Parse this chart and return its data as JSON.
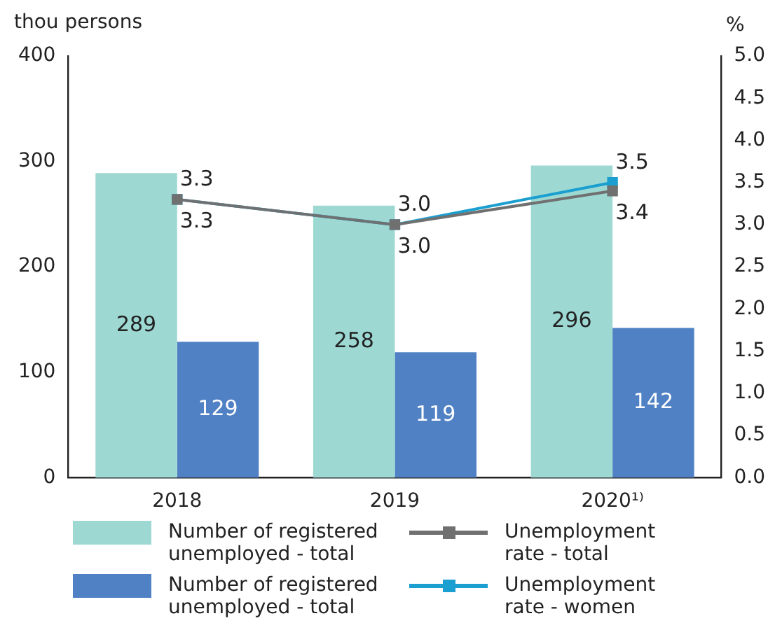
{
  "chart_data": {
    "type": "bar",
    "ylabel": "thou persons",
    "y2label": "%",
    "categories": [
      "2018",
      "2019",
      "2020¹⁾"
    ],
    "series": [
      {
        "name": "Number of registered unemployed - total",
        "color": "#9dd8d3",
        "values": [
          289,
          258,
          296
        ],
        "value_labels": [
          "289",
          "258",
          "296"
        ]
      },
      {
        "name": "Number of registered unemployed - total",
        "color": "#4f81c4",
        "values": [
          129,
          119,
          142
        ],
        "value_labels": [
          "129",
          "119",
          "142"
        ]
      },
      {
        "name": "Unemployment rate - total",
        "type": "line",
        "axis": "y2",
        "color": "#707070",
        "values": [
          3.3,
          3.0,
          3.4
        ],
        "value_labels": [
          "3.3",
          "3.0",
          "3.4"
        ]
      },
      {
        "name": "Unemployment rate - women",
        "type": "line",
        "axis": "y2",
        "color": "#1a9fd0",
        "values": [
          3.3,
          3.0,
          3.5
        ],
        "value_labels": [
          "3.3",
          "3.0",
          "3.5"
        ]
      }
    ],
    "ylim": [
      0,
      400
    ],
    "yticks": [
      0,
      100,
      200,
      300,
      400
    ],
    "y2lim": [
      0,
      5
    ],
    "y2ticks": [
      {
        "value": 0,
        "label": "0.0"
      },
      {
        "value": 0.5,
        "label": "0.5"
      },
      {
        "value": 1,
        "label": "1.0"
      },
      {
        "value": 1.5,
        "label": "1.5"
      },
      {
        "value": 2,
        "label": "2.0"
      },
      {
        "value": 2.5,
        "label": "2.5"
      },
      {
        "value": 3,
        "label": "3.0"
      },
      {
        "value": 3.5,
        "label": "3.5"
      },
      {
        "value": 4,
        "label": "4.0"
      },
      {
        "value": 4.5,
        "label": "4.5"
      },
      {
        "value": 5,
        "label": "5.0"
      }
    ],
    "grid": false,
    "legend": "bottom",
    "marker": "square",
    "line_style": "solid"
  }
}
